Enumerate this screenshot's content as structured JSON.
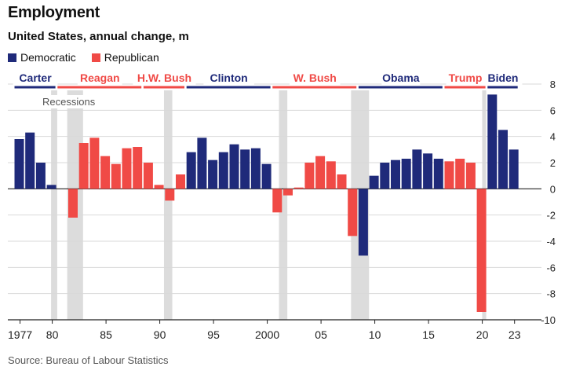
{
  "title": "Employment",
  "subtitle": "United States, annual change, m",
  "source": "Source: Bureau of Labour Statistics",
  "recessions_label": "Recessions",
  "colors": {
    "Democratic": "#1f2a7a",
    "Republican": "#f04a46",
    "recession": "#dcdcdc",
    "grid": "#d9d9d9",
    "axis": "#222222"
  },
  "chart_data": {
    "type": "bar",
    "title": "Employment",
    "subtitle": "United States, annual change, m",
    "ylim": [
      -10,
      8
    ],
    "yticks": [
      8,
      6,
      4,
      2,
      0,
      -2,
      -4,
      -6,
      -8,
      -10
    ],
    "grid": true,
    "legend": "top-left",
    "legend_entries": [
      "Democratic",
      "Republican"
    ],
    "xtick_labels": [
      {
        "year": 1977,
        "label": "1977"
      },
      {
        "year": 1980,
        "label": "80"
      },
      {
        "year": 1985,
        "label": "85"
      },
      {
        "year": 1990,
        "label": "90"
      },
      {
        "year": 1995,
        "label": "95"
      },
      {
        "year": 2000,
        "label": "2000"
      },
      {
        "year": 2005,
        "label": "05"
      },
      {
        "year": 2010,
        "label": "10"
      },
      {
        "year": 2015,
        "label": "15"
      },
      {
        "year": 2020,
        "label": "20"
      },
      {
        "year": 2023,
        "label": "23"
      }
    ],
    "presidents": [
      {
        "name": "Carter",
        "party": "Democratic",
        "start": 1977,
        "end": 1980
      },
      {
        "name": "Reagan",
        "party": "Republican",
        "start": 1981,
        "end": 1988
      },
      {
        "name": "H.W. Bush",
        "party": "Republican",
        "start": 1989,
        "end": 1992
      },
      {
        "name": "Clinton",
        "party": "Democratic",
        "start": 1993,
        "end": 2000
      },
      {
        "name": "W. Bush",
        "party": "Republican",
        "start": 2001,
        "end": 2008
      },
      {
        "name": "Obama",
        "party": "Democratic",
        "start": 2009,
        "end": 2016
      },
      {
        "name": "Trump",
        "party": "Republican",
        "start": 2017,
        "end": 2020
      },
      {
        "name": "Biden",
        "party": "Democratic",
        "start": 2021,
        "end": 2023
      }
    ],
    "recessions": [
      {
        "start": 1980.0,
        "end": 1980.5
      },
      {
        "start": 1981.5,
        "end": 1982.9
      },
      {
        "start": 1990.5,
        "end": 1991.2
      },
      {
        "start": 2001.2,
        "end": 2001.9
      },
      {
        "start": 2007.9,
        "end": 2009.5
      },
      {
        "start": 2020.1,
        "end": 2020.4
      }
    ],
    "series": [
      {
        "name": "Democratic",
        "party": "Democratic",
        "values": [
          {
            "year": 1977,
            "value": 3.8
          },
          {
            "year": 1978,
            "value": 4.3
          },
          {
            "year": 1979,
            "value": 2.0
          },
          {
            "year": 1980,
            "value": 0.3
          },
          {
            "year": 1993,
            "value": 2.8
          },
          {
            "year": 1994,
            "value": 3.9
          },
          {
            "year": 1995,
            "value": 2.2
          },
          {
            "year": 1996,
            "value": 2.8
          },
          {
            "year": 1997,
            "value": 3.4
          },
          {
            "year": 1998,
            "value": 3.0
          },
          {
            "year": 1999,
            "value": 3.1
          },
          {
            "year": 2000,
            "value": 1.9
          },
          {
            "year": 2009,
            "value": -5.1
          },
          {
            "year": 2010,
            "value": 1.0
          },
          {
            "year": 2011,
            "value": 2.0
          },
          {
            "year": 2012,
            "value": 2.2
          },
          {
            "year": 2013,
            "value": 2.3
          },
          {
            "year": 2014,
            "value": 3.0
          },
          {
            "year": 2015,
            "value": 2.7
          },
          {
            "year": 2016,
            "value": 2.3
          },
          {
            "year": 2021,
            "value": 7.2
          },
          {
            "year": 2022,
            "value": 4.5
          },
          {
            "year": 2023,
            "value": 3.0
          }
        ]
      },
      {
        "name": "Republican",
        "party": "Republican",
        "values": [
          {
            "year": 1982,
            "value": -2.2
          },
          {
            "year": 1983,
            "value": 3.5
          },
          {
            "year": 1984,
            "value": 3.9
          },
          {
            "year": 1985,
            "value": 2.5
          },
          {
            "year": 1986,
            "value": 1.9
          },
          {
            "year": 1987,
            "value": 3.1
          },
          {
            "year": 1988,
            "value": 3.2
          },
          {
            "year": 1989,
            "value": 2.0
          },
          {
            "year": 1990,
            "value": 0.3
          },
          {
            "year": 1991,
            "value": -0.9
          },
          {
            "year": 1992,
            "value": 1.1
          },
          {
            "year": 2001,
            "value": -1.8
          },
          {
            "year": 2002,
            "value": -0.5
          },
          {
            "year": 2003,
            "value": 0.1
          },
          {
            "year": 2004,
            "value": 2.0
          },
          {
            "year": 2005,
            "value": 2.5
          },
          {
            "year": 2006,
            "value": 2.1
          },
          {
            "year": 2007,
            "value": 1.1
          },
          {
            "year": 2008,
            "value": -3.6
          },
          {
            "year": 2017,
            "value": 2.1
          },
          {
            "year": 2018,
            "value": 2.3
          },
          {
            "year": 2019,
            "value": 2.0
          },
          {
            "year": 2020,
            "value": -9.4
          }
        ]
      }
    ]
  }
}
